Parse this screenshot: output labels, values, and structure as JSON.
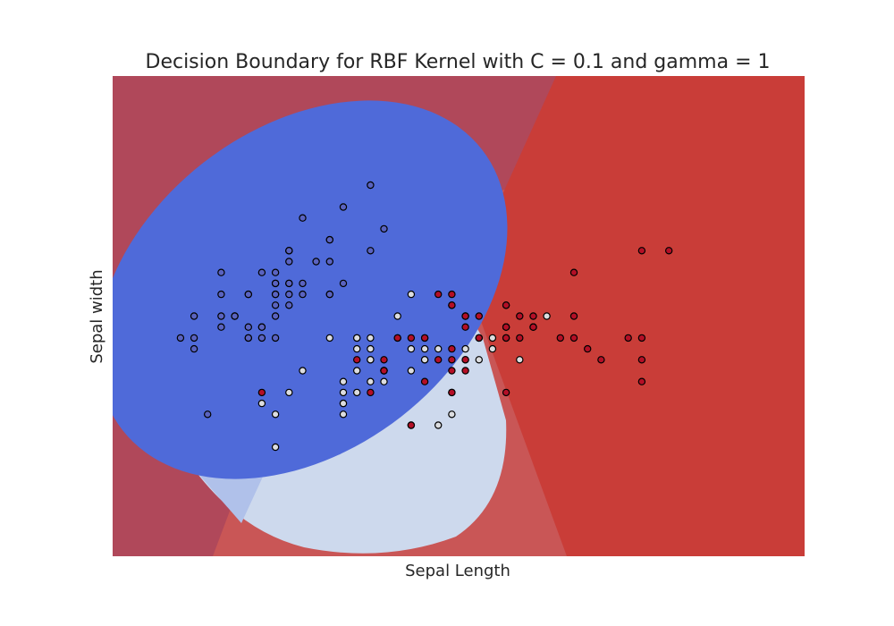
{
  "chart_data": {
    "type": "scatter",
    "title": "Decision Boundary for RBF Kernel with C = 0.1 and gamma = 1",
    "xlabel": "Sepal Length",
    "ylabel": "Sepal width",
    "xlim": [
      3.8,
      8.9
    ],
    "ylim": [
      1.0,
      5.4
    ],
    "grid": false,
    "ticks_visible": false,
    "background": "filled decision regions",
    "colors": {
      "class_0_point": "#5a63c0",
      "class_1_point": "#dcdde0",
      "class_2_point": "#b40f26",
      "region_blue": "#4f6ad9",
      "region_light": "#cdd9ed",
      "region_light_mid": "#b0c1ea",
      "region_red": "#c93d38",
      "region_dark_red": "#b0485a",
      "region_mid_red": "#c95656",
      "point_edge": "#000000"
    },
    "series": [
      {
        "class": 0,
        "points": [
          [
            5.1,
            3.5
          ],
          [
            4.9,
            3.0
          ],
          [
            4.7,
            3.2
          ],
          [
            4.6,
            3.1
          ],
          [
            5.0,
            3.6
          ],
          [
            5.4,
            3.9
          ],
          [
            4.6,
            3.4
          ],
          [
            5.0,
            3.4
          ],
          [
            4.4,
            2.9
          ],
          [
            4.9,
            3.1
          ],
          [
            5.4,
            3.7
          ],
          [
            4.8,
            3.4
          ],
          [
            4.8,
            3.0
          ],
          [
            4.3,
            3.0
          ],
          [
            5.8,
            4.0
          ],
          [
            5.7,
            4.4
          ],
          [
            5.4,
            3.9
          ],
          [
            5.1,
            3.5
          ],
          [
            5.7,
            3.8
          ],
          [
            5.1,
            3.8
          ],
          [
            5.4,
            3.4
          ],
          [
            5.1,
            3.7
          ],
          [
            4.6,
            3.6
          ],
          [
            5.1,
            3.3
          ],
          [
            4.8,
            3.4
          ],
          [
            5.0,
            3.0
          ],
          [
            5.0,
            3.4
          ],
          [
            5.2,
            3.5
          ],
          [
            5.2,
            3.4
          ],
          [
            4.7,
            3.2
          ],
          [
            4.8,
            3.1
          ],
          [
            5.4,
            3.4
          ],
          [
            5.2,
            4.1
          ],
          [
            5.5,
            4.2
          ],
          [
            4.9,
            3.1
          ],
          [
            5.0,
            3.2
          ],
          [
            5.5,
            3.5
          ],
          [
            4.9,
            3.6
          ],
          [
            4.4,
            3.0
          ],
          [
            5.1,
            3.4
          ],
          [
            5.0,
            3.5
          ],
          [
            4.5,
            2.3
          ],
          [
            4.4,
            3.2
          ],
          [
            5.0,
            3.5
          ],
          [
            5.1,
            3.8
          ],
          [
            4.8,
            3.0
          ],
          [
            5.1,
            3.8
          ],
          [
            4.6,
            3.2
          ],
          [
            5.3,
            3.7
          ],
          [
            5.0,
            3.3
          ]
        ]
      },
      {
        "class": 1,
        "points": [
          [
            7.0,
            3.2
          ],
          [
            6.4,
            3.2
          ],
          [
            6.9,
            3.1
          ],
          [
            5.5,
            2.3
          ],
          [
            6.5,
            2.8
          ],
          [
            5.7,
            2.8
          ],
          [
            6.3,
            3.3
          ],
          [
            4.9,
            2.4
          ],
          [
            6.6,
            2.9
          ],
          [
            5.2,
            2.7
          ],
          [
            5.0,
            2.0
          ],
          [
            5.9,
            3.0
          ],
          [
            6.0,
            2.2
          ],
          [
            6.1,
            2.9
          ],
          [
            5.6,
            2.9
          ],
          [
            6.7,
            3.1
          ],
          [
            5.6,
            3.0
          ],
          [
            5.8,
            2.7
          ],
          [
            6.2,
            2.2
          ],
          [
            5.6,
            2.5
          ],
          [
            5.9,
            3.2
          ],
          [
            6.1,
            2.8
          ],
          [
            6.3,
            2.5
          ],
          [
            6.1,
            2.8
          ],
          [
            6.4,
            2.9
          ],
          [
            6.6,
            3.0
          ],
          [
            6.8,
            2.8
          ],
          [
            6.7,
            3.0
          ],
          [
            6.0,
            2.9
          ],
          [
            5.7,
            2.6
          ],
          [
            5.5,
            2.4
          ],
          [
            5.5,
            2.4
          ],
          [
            5.8,
            2.7
          ],
          [
            6.0,
            2.7
          ],
          [
            5.4,
            3.0
          ],
          [
            6.0,
            3.4
          ],
          [
            6.7,
            3.1
          ],
          [
            6.3,
            2.3
          ],
          [
            5.6,
            3.0
          ],
          [
            5.5,
            2.5
          ],
          [
            5.5,
            2.6
          ],
          [
            6.1,
            3.0
          ],
          [
            5.8,
            2.6
          ],
          [
            5.0,
            2.3
          ],
          [
            5.6,
            2.7
          ],
          [
            5.7,
            3.0
          ],
          [
            5.7,
            2.9
          ],
          [
            6.2,
            2.9
          ],
          [
            5.1,
            2.5
          ],
          [
            5.7,
            2.8
          ]
        ]
      },
      {
        "class": 2,
        "points": [
          [
            6.3,
            3.3
          ],
          [
            5.8,
            2.7
          ],
          [
            7.1,
            3.0
          ],
          [
            6.3,
            2.9
          ],
          [
            6.5,
            3.0
          ],
          [
            7.6,
            3.0
          ],
          [
            4.9,
            2.5
          ],
          [
            7.3,
            2.9
          ],
          [
            6.7,
            2.5
          ],
          [
            7.2,
            3.6
          ],
          [
            6.5,
            3.2
          ],
          [
            6.4,
            2.7
          ],
          [
            6.8,
            3.0
          ],
          [
            5.7,
            2.5
          ],
          [
            5.8,
            2.8
          ],
          [
            6.4,
            3.2
          ],
          [
            6.5,
            3.0
          ],
          [
            7.7,
            3.8
          ],
          [
            7.7,
            2.6
          ],
          [
            6.0,
            2.2
          ],
          [
            6.9,
            3.2
          ],
          [
            5.6,
            2.8
          ],
          [
            7.7,
            2.8
          ],
          [
            6.3,
            2.7
          ],
          [
            6.7,
            3.3
          ],
          [
            7.2,
            3.2
          ],
          [
            6.2,
            2.8
          ],
          [
            6.1,
            3.0
          ],
          [
            6.4,
            2.8
          ],
          [
            7.2,
            3.0
          ],
          [
            7.4,
            2.8
          ],
          [
            7.9,
            3.8
          ],
          [
            6.4,
            2.8
          ],
          [
            6.3,
            2.8
          ],
          [
            6.1,
            2.6
          ],
          [
            7.7,
            3.0
          ],
          [
            6.3,
            3.4
          ],
          [
            6.4,
            3.1
          ],
          [
            6.0,
            3.0
          ],
          [
            6.9,
            3.1
          ],
          [
            6.7,
            3.1
          ],
          [
            6.9,
            3.1
          ],
          [
            5.8,
            2.7
          ],
          [
            6.8,
            3.2
          ],
          [
            6.7,
            3.3
          ],
          [
            6.7,
            3.0
          ],
          [
            6.3,
            2.5
          ],
          [
            6.5,
            3.0
          ],
          [
            6.2,
            3.4
          ],
          [
            5.9,
            3.0
          ]
        ]
      }
    ]
  }
}
